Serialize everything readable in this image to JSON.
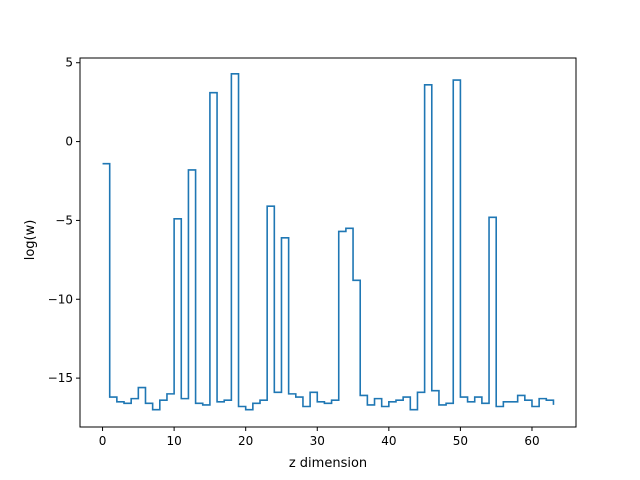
{
  "chart_data": {
    "type": "line",
    "drawstyle": "steps-post",
    "title": "",
    "xlabel": "z dimension",
    "ylabel": "log(w)",
    "xlim": [
      -3.15,
      66.15
    ],
    "ylim": [
      -18.1,
      5.3
    ],
    "xticks": [
      0,
      10,
      20,
      30,
      40,
      50,
      60
    ],
    "yticks": [
      -15,
      -10,
      -5,
      0,
      5
    ],
    "grid": false,
    "legend": "none",
    "series": [
      {
        "color": "#1f77b4",
        "x": [
          0,
          1,
          2,
          3,
          4,
          5,
          6,
          7,
          8,
          9,
          10,
          11,
          12,
          13,
          14,
          15,
          16,
          17,
          18,
          19,
          20,
          21,
          22,
          23,
          24,
          25,
          26,
          27,
          28,
          29,
          30,
          31,
          32,
          33,
          34,
          35,
          36,
          37,
          38,
          39,
          40,
          41,
          42,
          43,
          44,
          45,
          46,
          47,
          48,
          49,
          50,
          51,
          52,
          53,
          54,
          55,
          56,
          57,
          58,
          59,
          60,
          61,
          62,
          63
        ],
        "y": [
          -1.4,
          -16.2,
          -16.5,
          -16.6,
          -16.3,
          -15.6,
          -16.6,
          -17.0,
          -16.4,
          -16.0,
          -4.9,
          -16.3,
          -1.8,
          -16.6,
          -16.7,
          3.1,
          -16.5,
          -16.4,
          4.3,
          -16.8,
          -17.0,
          -16.6,
          -16.4,
          -4.1,
          -15.9,
          -6.1,
          -16.0,
          -16.2,
          -16.8,
          -15.9,
          -16.5,
          -16.6,
          -16.4,
          -5.7,
          -5.5,
          -8.8,
          -16.1,
          -16.7,
          -16.3,
          -16.8,
          -16.5,
          -16.4,
          -16.2,
          -17.0,
          -15.9,
          3.6,
          -15.8,
          -16.7,
          -16.6,
          3.9,
          -16.2,
          -16.5,
          -16.2,
          -16.6,
          -4.8,
          -16.8,
          -16.5,
          -16.5,
          -16.1,
          -16.4,
          -16.8,
          -16.3,
          -16.4,
          -16.7
        ]
      }
    ]
  }
}
